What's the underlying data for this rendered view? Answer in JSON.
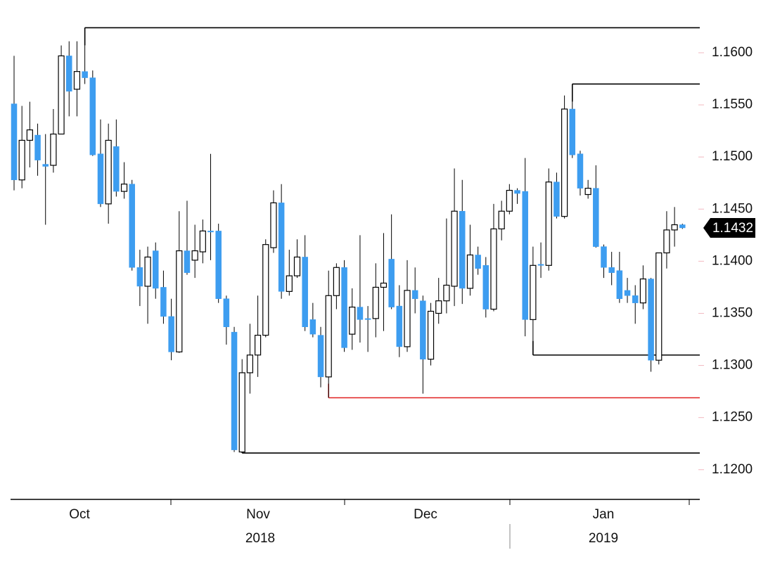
{
  "chart_data": {
    "type": "candlestick",
    "up_color": "#ffffff",
    "down_color": "#3d9df0",
    "open": [
      1.1551,
      1.1478,
      1.1516,
      1.1521,
      1.1493,
      1.1492,
      1.1522,
      1.1597,
      1.1565,
      1.1582,
      1.1576,
      1.1503,
      1.1455,
      1.151,
      1.1467,
      1.1474,
      1.1394,
      1.1376,
      1.141,
      1.1375,
      1.1347,
      1.1313,
      1.141,
      1.1401,
      1.1409,
      1.1429,
      1.1429,
      1.1364,
      1.1332,
      1.1217,
      1.1293,
      1.131,
      1.1329,
      1.1413,
      1.1456,
      1.1371,
      1.1386,
      1.1404,
      1.1344,
      1.1329,
      1.1289,
      1.1367,
      1.1394,
      1.133,
      1.1356,
      1.1345,
      1.1345,
      1.1375,
      1.1402,
      1.1357,
      1.1318,
      1.1372,
      1.1362,
      1.1306,
      1.135,
      1.1362,
      1.1376,
      1.1448,
      1.1374,
      1.1406,
      1.1396,
      1.1354,
      1.1431,
      1.1448,
      1.1468,
      1.1467,
      1.1344,
      1.1397,
      1.1396,
      1.1476,
      1.1443,
      1.1546,
      1.1503,
      1.1464,
      1.147,
      1.1414,
      1.1394,
      1.1391,
      1.1372,
      1.1367,
      1.136,
      1.1383,
      1.1305,
      1.1408,
      1.143,
      1.1435
    ],
    "high": [
      1.1597,
      1.1549,
      1.1553,
      1.1532,
      1.1522,
      1.1546,
      1.1607,
      1.1611,
      1.1611,
      1.1624,
      1.1583,
      1.1536,
      1.1532,
      1.1536,
      1.1495,
      1.1478,
      1.1411,
      1.1414,
      1.1418,
      1.1391,
      1.1364,
      1.1448,
      1.1458,
      1.1435,
      1.144,
      1.1503,
      1.1436,
      1.1367,
      1.1337,
      1.1306,
      1.134,
      1.1367,
      1.1421,
      1.1468,
      1.1474,
      1.1411,
      1.1421,
      1.1425,
      1.136,
      1.1337,
      1.1391,
      1.1398,
      1.1401,
      1.1374,
      1.1425,
      1.1357,
      1.1398,
      1.1427,
      1.1445,
      1.1377,
      1.1401,
      1.1394,
      1.1367,
      1.136,
      1.1384,
      1.1441,
      1.1489,
      1.1478,
      1.1435,
      1.1414,
      1.1404,
      1.1455,
      1.1458,
      1.1474,
      1.147,
      1.1499,
      1.1414,
      1.1418,
      1.1489,
      1.1485,
      1.1559,
      1.157,
      1.1506,
      1.1478,
      1.1492,
      1.1416,
      1.1409,
      1.1409,
      1.1384,
      1.1377,
      1.1396,
      1.1384,
      1.1408,
      1.1448,
      1.1452,
      1.1436
    ],
    "low": [
      1.1468,
      1.147,
      1.149,
      1.1482,
      1.1435,
      1.1485,
      1.1522,
      1.1539,
      1.1539,
      1.157,
      1.1501,
      1.1452,
      1.1436,
      1.1462,
      1.146,
      1.1391,
      1.1357,
      1.134,
      1.1364,
      1.134,
      1.1305,
      1.1312,
      1.1387,
      1.1384,
      1.1398,
      1.1401,
      1.136,
      1.132,
      1.1217,
      1.1216,
      1.1273,
      1.1289,
      1.1327,
      1.1408,
      1.1364,
      1.1367,
      1.1384,
      1.1333,
      1.1327,
      1.1279,
      1.1269,
      1.1354,
      1.1313,
      1.1315,
      1.1322,
      1.1313,
      1.1327,
      1.1333,
      1.1354,
      1.1308,
      1.1313,
      1.135,
      1.1273,
      1.13,
      1.134,
      1.135,
      1.1357,
      1.1359,
      1.1367,
      1.1387,
      1.1346,
      1.1352,
      1.142,
      1.1445,
      1.1455,
      1.1328,
      1.131,
      1.1384,
      1.1391,
      1.1441,
      1.1441,
      1.1499,
      1.1463,
      1.146,
      1.1413,
      1.1384,
      1.1377,
      1.136,
      1.136,
      1.134,
      1.1354,
      1.1294,
      1.1301,
      1.1393,
      1.1414,
      1.1431
    ],
    "close": [
      1.1478,
      1.1516,
      1.1526,
      1.1497,
      1.1491,
      1.1522,
      1.1597,
      1.1563,
      1.1582,
      1.1576,
      1.1502,
      1.1455,
      1.1516,
      1.1467,
      1.1474,
      1.1394,
      1.1376,
      1.1404,
      1.1374,
      1.1347,
      1.1313,
      1.141,
      1.1389,
      1.141,
      1.1429,
      1.1428,
      1.1364,
      1.1337,
      1.1219,
      1.1293,
      1.131,
      1.1329,
      1.1416,
      1.1456,
      1.1371,
      1.1386,
      1.1404,
      1.1337,
      1.133,
      1.1289,
      1.1367,
      1.1394,
      1.1317,
      1.1356,
      1.1344,
      1.1344,
      1.1375,
      1.1379,
      1.1356,
      1.1318,
      1.1372,
      1.1364,
      1.1306,
      1.1352,
      1.1362,
      1.1377,
      1.1448,
      1.1374,
      1.1406,
      1.1393,
      1.1354,
      1.1431,
      1.1448,
      1.1468,
      1.1465,
      1.1344,
      1.1396,
      1.1396,
      1.1476,
      1.1443,
      1.1546,
      1.1502,
      1.147,
      1.147,
      1.1414,
      1.1394,
      1.1389,
      1.1364,
      1.1367,
      1.136,
      1.1383,
      1.1305,
      1.1408,
      1.143,
      1.1435,
      1.1432
    ],
    "levels": [
      {
        "value": 1.1624,
        "color": "#000000"
      },
      {
        "value": 1.157,
        "color": "#000000"
      },
      {
        "value": 1.131,
        "color": "#000000"
      },
      {
        "value": 1.1269,
        "color": "#e02020"
      },
      {
        "value": 1.1216,
        "color": "#000000"
      }
    ],
    "last_price": {
      "value": 1.1432,
      "label": "1.1432"
    },
    "x_labels": [
      "Oct",
      "Nov",
      "Dec",
      "Jan"
    ],
    "year_labels": [
      "2018",
      "2019"
    ],
    "ylim": [
      1.11715,
      1.16506
    ],
    "yticks": [
      {
        "value": 1.12,
        "label": "1.1200"
      },
      {
        "value": 1.125,
        "label": "1.1250"
      },
      {
        "value": 1.13,
        "label": "1.1300"
      },
      {
        "value": 1.135,
        "label": "1.1350"
      },
      {
        "value": 1.14,
        "label": "1.1400"
      },
      {
        "value": 1.145,
        "label": "1.1450"
      },
      {
        "value": 1.15,
        "label": "1.1500"
      },
      {
        "value": 1.155,
        "label": "1.1550"
      },
      {
        "value": 1.16,
        "label": "1.1600"
      }
    ]
  }
}
